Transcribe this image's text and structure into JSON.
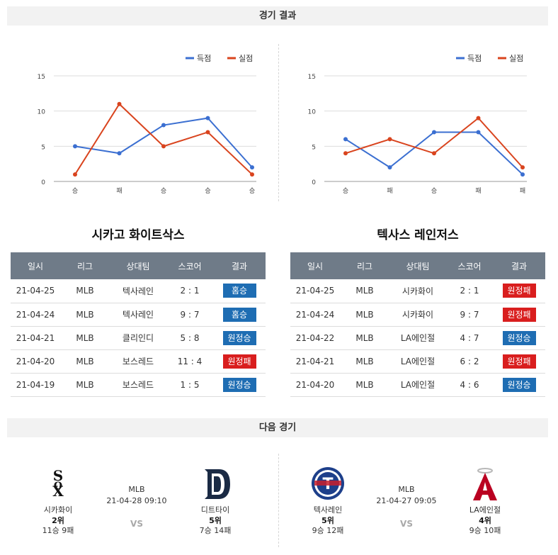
{
  "results_header": "경기 결과",
  "next_header": "다음 경기",
  "legend": {
    "scored": "득점",
    "allowed": "실점"
  },
  "colors": {
    "scored": "#3b6fd1",
    "allowed": "#d9441e",
    "win": "#1e6db3",
    "loss": "#d91e1e",
    "table_header": "#6f7b88"
  },
  "chart_data": [
    {
      "type": "line",
      "categories": [
        "승",
        "패",
        "승",
        "승",
        "승"
      ],
      "ylim": [
        0,
        15
      ],
      "yticks": [
        0,
        5,
        10,
        15
      ],
      "series": [
        {
          "name": "득점",
          "values": [
            5,
            4,
            8,
            9,
            2
          ]
        },
        {
          "name": "실점",
          "values": [
            1,
            11,
            5,
            7,
            1
          ]
        }
      ]
    },
    {
      "type": "line",
      "categories": [
        "승",
        "패",
        "승",
        "패",
        "패"
      ],
      "ylim": [
        0,
        15
      ],
      "yticks": [
        0,
        5,
        10,
        15
      ],
      "series": [
        {
          "name": "득점",
          "values": [
            6,
            2,
            7,
            7,
            1
          ]
        },
        {
          "name": "실점",
          "values": [
            4,
            6,
            4,
            9,
            2
          ]
        }
      ]
    }
  ],
  "table_headers": [
    "일시",
    "리그",
    "상대팀",
    "스코어",
    "결과"
  ],
  "left_team": {
    "name": "시카고 화이트삭스",
    "games": [
      {
        "date": "21-04-25",
        "league": "MLB",
        "opponent": "텍사레인",
        "score": "2 : 1",
        "result": "홈승",
        "win": true
      },
      {
        "date": "21-04-24",
        "league": "MLB",
        "opponent": "텍사레인",
        "score": "9 : 7",
        "result": "홈승",
        "win": true
      },
      {
        "date": "21-04-21",
        "league": "MLB",
        "opponent": "클리인디",
        "score": "5 : 8",
        "result": "원정승",
        "win": true
      },
      {
        "date": "21-04-20",
        "league": "MLB",
        "opponent": "보스레드",
        "score": "11 : 4",
        "result": "원정패",
        "win": false
      },
      {
        "date": "21-04-19",
        "league": "MLB",
        "opponent": "보스레드",
        "score": "1 : 5",
        "result": "원정승",
        "win": true
      }
    ]
  },
  "right_team": {
    "name": "텍사스 레인저스",
    "games": [
      {
        "date": "21-04-25",
        "league": "MLB",
        "opponent": "시카화이",
        "score": "2 : 1",
        "result": "원정패",
        "win": false
      },
      {
        "date": "21-04-24",
        "league": "MLB",
        "opponent": "시카화이",
        "score": "9 : 7",
        "result": "원정패",
        "win": false
      },
      {
        "date": "21-04-22",
        "league": "MLB",
        "opponent": "LA에인절",
        "score": "4 : 7",
        "result": "원정승",
        "win": true
      },
      {
        "date": "21-04-21",
        "league": "MLB",
        "opponent": "LA에인절",
        "score": "6 : 2",
        "result": "원정패",
        "win": false
      },
      {
        "date": "21-04-20",
        "league": "MLB",
        "opponent": "LA에인절",
        "score": "4 : 6",
        "result": "원정승",
        "win": true
      }
    ]
  },
  "next_games": [
    {
      "league": "MLB",
      "datetime": "21-04-28 09:10",
      "vs": "VS",
      "home": {
        "name": "시카화이",
        "rank": "2위",
        "record": "11승 9패",
        "logo": "white-sox-logo"
      },
      "away": {
        "name": "디트타이",
        "rank": "5위",
        "record": "7승 14패",
        "logo": "tigers-logo"
      }
    },
    {
      "league": "MLB",
      "datetime": "21-04-27 09:05",
      "vs": "VS",
      "home": {
        "name": "텍사레인",
        "rank": "5위",
        "record": "9승 12패",
        "logo": "rangers-logo"
      },
      "away": {
        "name": "LA에인절",
        "rank": "4위",
        "record": "9승 10패",
        "logo": "angels-logo"
      }
    }
  ]
}
